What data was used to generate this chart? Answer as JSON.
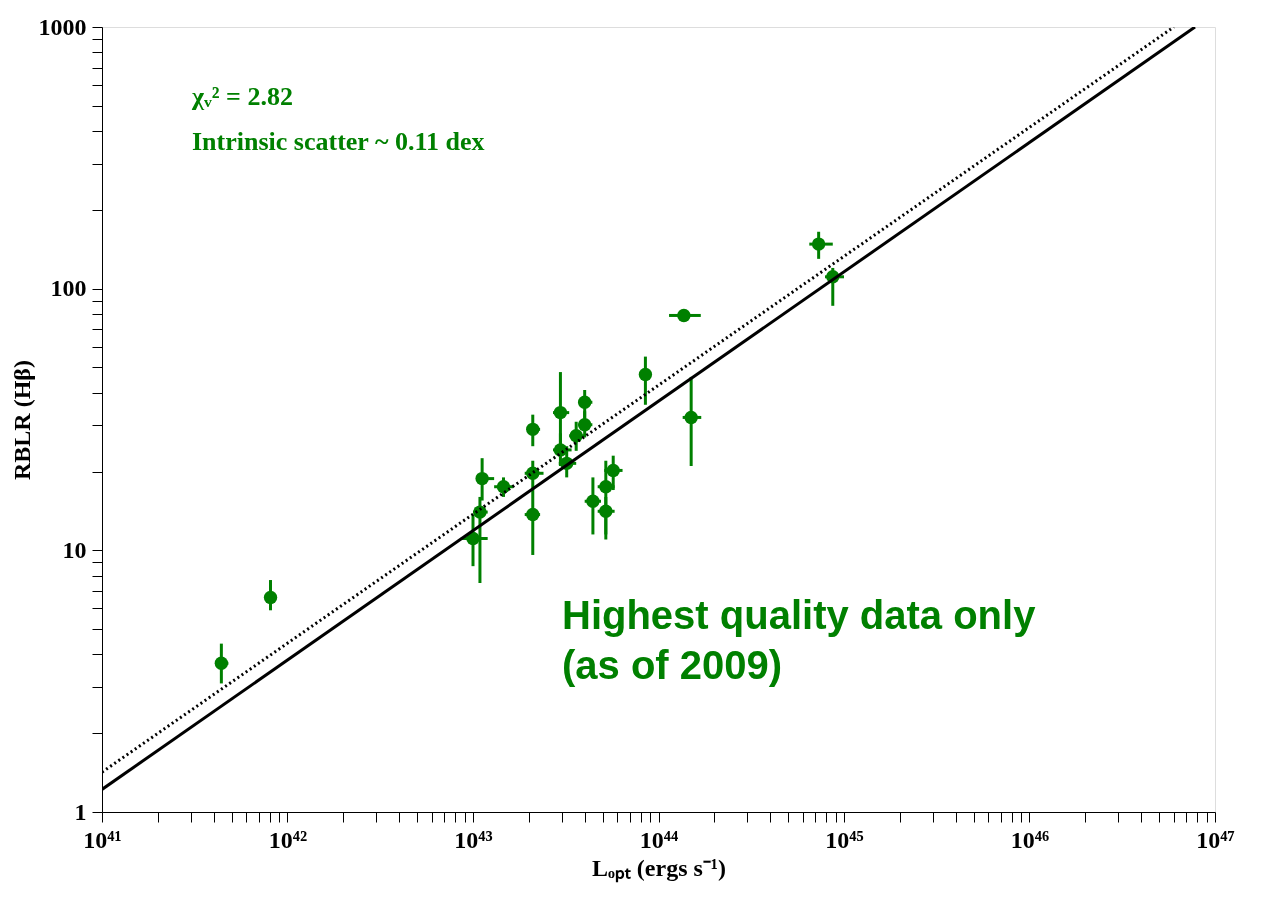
{
  "chart_data": {
    "type": "scatter",
    "xlabel": "Lₒₚₜ (ergs s⁻¹)",
    "ylabel": "RBLR (Hβ)",
    "annotations": [
      "χᵥ² =   2.82",
      "Intrinsic scatter ~ 0.11 dex",
      "Highest quality data only",
      "(as of 2009)"
    ],
    "log": "xy",
    "grid": false,
    "xlim": [
      1e+41,
      1e+47
    ],
    "ylim": [
      1,
      1000
    ],
    "xticks": [
      {
        "value": 1e+41,
        "label": "10⁴¹"
      },
      {
        "value": 1e+42,
        "label": "10⁴²"
      },
      {
        "value": 1e+43,
        "label": "10⁴³"
      },
      {
        "value": 1e+44,
        "label": "10⁴⁴"
      },
      {
        "value": 1e+45,
        "label": "10⁴⁵"
      },
      {
        "value": 1e+46,
        "label": "10⁴⁶"
      },
      {
        "value": 1e+47,
        "label": "10⁴⁷"
      },
      {
        "value": 2e+41,
        "label": null
      },
      {
        "value": 3e+41,
        "label": null
      },
      {
        "value": 4e+41,
        "label": null
      },
      {
        "value": 5e+41,
        "label": null
      },
      {
        "value": 6e+41,
        "label": null
      },
      {
        "value": 7e+41,
        "label": null
      },
      {
        "value": 8e+41,
        "label": null
      },
      {
        "value": 9e+41,
        "label": null
      },
      {
        "value": 2e+42,
        "label": null
      },
      {
        "value": 3e+42,
        "label": null
      },
      {
        "value": 4e+42,
        "label": null
      },
      {
        "value": 5e+42,
        "label": null
      },
      {
        "value": 6e+42,
        "label": null
      },
      {
        "value": 7e+42,
        "label": null
      },
      {
        "value": 8e+42,
        "label": null
      },
      {
        "value": 9e+42,
        "label": null
      },
      {
        "value": 2e+43,
        "label": null
      },
      {
        "value": 3e+43,
        "label": null
      },
      {
        "value": 4e+43,
        "label": null
      },
      {
        "value": 5e+43,
        "label": null
      },
      {
        "value": 6e+43,
        "label": null
      },
      {
        "value": 7e+43,
        "label": null
      },
      {
        "value": 8e+43,
        "label": null
      },
      {
        "value": 9e+43,
        "label": null
      },
      {
        "value": 2e+44,
        "label": null
      },
      {
        "value": 3e+44,
        "label": null
      },
      {
        "value": 4e+44,
        "label": null
      },
      {
        "value": 5e+44,
        "label": null
      },
      {
        "value": 6e+44,
        "label": null
      },
      {
        "value": 7e+44,
        "label": null
      },
      {
        "value": 8e+44,
        "label": null
      },
      {
        "value": 9e+44,
        "label": null
      },
      {
        "value": 2e+45,
        "label": null
      },
      {
        "value": 3e+45,
        "label": null
      },
      {
        "value": 4e+45,
        "label": null
      },
      {
        "value": 5e+45,
        "label": null
      },
      {
        "value": 6e+45,
        "label": null
      },
      {
        "value": 7e+45,
        "label": null
      },
      {
        "value": 8e+45,
        "label": null
      },
      {
        "value": 9e+45,
        "label": null
      },
      {
        "value": 2e+46,
        "label": null
      },
      {
        "value": 3e+46,
        "label": null
      },
      {
        "value": 4e+46,
        "label": null
      },
      {
        "value": 5e+46,
        "label": null
      },
      {
        "value": 6e+46,
        "label": null
      },
      {
        "value": 7e+46,
        "label": null
      },
      {
        "value": 8e+46,
        "label": null
      },
      {
        "value": 9e+46,
        "label": null
      }
    ],
    "yticks": [
      1,
      10,
      100,
      1000,
      {
        "value": 2,
        "label": null
      },
      {
        "value": 3,
        "label": null
      },
      {
        "value": 4,
        "label": null
      },
      {
        "value": 5,
        "label": null
      },
      {
        "value": 6,
        "label": null
      },
      {
        "value": 7,
        "label": null
      },
      {
        "value": 8,
        "label": null
      },
      {
        "value": 9,
        "label": null
      },
      {
        "value": 20,
        "label": null
      },
      {
        "value": 30,
        "label": null
      },
      {
        "value": 40,
        "label": null
      },
      {
        "value": 50,
        "label": null
      },
      {
        "value": 60,
        "label": null
      },
      {
        "value": 70,
        "label": null
      },
      {
        "value": 80,
        "label": null
      },
      {
        "value": 90,
        "label": null
      },
      {
        "value": 200,
        "label": null
      },
      {
        "value": 300,
        "label": null
      },
      {
        "value": 400,
        "label": null
      },
      {
        "value": 500,
        "label": null
      },
      {
        "value": 600,
        "label": null
      },
      {
        "value": 700,
        "label": null
      },
      {
        "value": 800,
        "label": null
      },
      {
        "value": 900,
        "label": null
      }
    ],
    "series": [
      {
        "type": "scatter",
        "marker": "circle",
        "color": "#008000",
        "x": [
          4.4e+41,
          8.1e+41,
          1e+43,
          1.09e+43,
          1.12e+43,
          1.46e+43,
          2.1e+43,
          2.1e+43,
          2.1e+43,
          2.96e+43,
          2.96e+43,
          3.2e+43,
          4e+43,
          4e+43,
          3.6e+43,
          4.43e+43,
          5.2e+43,
          5.2e+43,
          5.7e+43,
          8.5e+43,
          1.37e+44,
          1.5e+44,
          7.3e+44,
          8.7e+44
        ],
        "values": [
          3.7,
          6.6,
          11.1,
          14.0,
          18.8,
          17.5,
          13.7,
          19.7,
          29,
          33.6,
          24.2,
          21.5,
          36.8,
          30.2,
          27.4,
          15.4,
          17.5,
          14.1,
          20.2,
          47,
          79,
          32.2,
          148,
          111
        ],
        "errors": [
          [
            3.1,
            4.4
          ],
          [
            5.9,
            7.7
          ],
          [
            8.7,
            13.7
          ],
          [
            7.5,
            16
          ],
          [
            15.5,
            22.5
          ],
          [
            16,
            19
          ],
          [
            9.6,
            17
          ],
          [
            17,
            22
          ],
          [
            25,
            33
          ],
          [
            24,
            48
          ],
          [
            21,
            28
          ],
          [
            19,
            25
          ],
          [
            32,
            41
          ],
          [
            27,
            34
          ],
          [
            24,
            31
          ],
          [
            11.5,
            19
          ],
          [
            11,
            22
          ],
          [
            11.5,
            16
          ],
          [
            17,
            23
          ],
          [
            36,
            55
          ],
          [
            75,
            83
          ],
          [
            21,
            46
          ],
          [
            130,
            165
          ],
          [
            86,
            120
          ]
        ],
        "xerrors": [
          [
            4.1e+41,
            4.8e+41
          ],
          [
            7.6e+41,
            8.7e+41
          ],
          [
            8.6e+42,
            1.2e+43
          ],
          [
            1e+43,
            1.2e+43
          ],
          [
            1.05e+43,
            1.3e+43
          ],
          [
            1.3e+43,
            1.65e+43
          ],
          [
            1.9e+43,
            2.3e+43
          ],
          [
            1.9e+43,
            2.4e+43
          ],
          [
            2e+43,
            2.3e+43
          ],
          [
            2.7e+43,
            3.3e+43
          ],
          [
            2.7e+43,
            3.4e+43
          ],
          [
            2.9e+43,
            3.6e+43
          ],
          [
            3.7e+43,
            4.4e+43
          ],
          [
            3.7e+43,
            4.4e+43
          ],
          [
            3.3e+43,
            4e+43
          ],
          [
            4e+43,
            4.9e+43
          ],
          [
            4.7e+43,
            5.8e+43
          ],
          [
            4.7e+43,
            5.8e+43
          ],
          [
            5.1e+43,
            6.4e+43
          ],
          [
            8e+43,
            9e+43
          ],
          [
            1.14e+44,
            1.69e+44
          ],
          [
            1.35e+44,
            1.7e+44
          ],
          [
            6.5e+44,
            8.7e+44
          ],
          [
            7.9e+44,
            1e+45
          ]
        ]
      },
      {
        "type": "line",
        "marker": "none",
        "color": "#000000",
        "line_style": "solid",
        "x": [
          1e+41,
          7.8e+46
        ],
        "values": [
          1.22,
          1000
        ]
      },
      {
        "type": "line",
        "marker": "none",
        "color": "#000000",
        "line_style": "dotted",
        "x": [
          1e+41,
          6e+46
        ],
        "values": [
          1.42,
          1000
        ]
      }
    ]
  }
}
